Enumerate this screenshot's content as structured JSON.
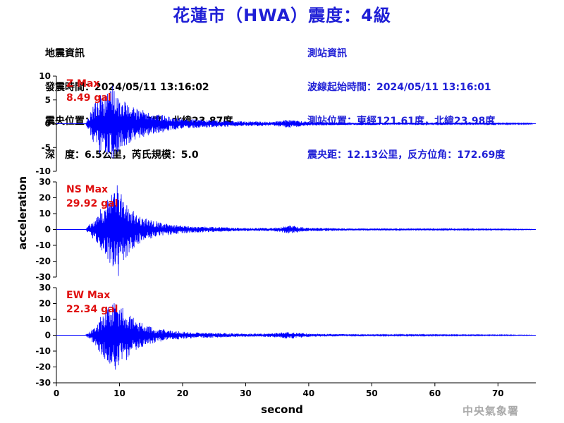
{
  "title": "花蓮市（HWA）震度：4級",
  "quake_info": {
    "heading": "地震資訊",
    "origin_time": "發震時間：2024/05/11 13:16:02",
    "epicenter": "震央位置：東經121.63度，北緯23.87度",
    "depth_magnitude": "深　度：6.5公里，芮氏規模：5.0"
  },
  "station_info": {
    "heading": "測站資訊",
    "wave_start": "波線起始時間：2024/05/11 13:16:01",
    "station_location": "測站位置：東經121.61度，北緯23.98度",
    "distance_azimuth": "震央距：12.13公里，反方位角：172.69度"
  },
  "agency": "中央氣象署",
  "colors": {
    "title": "#1f1fd6",
    "trace": "#0000ff",
    "max_label": "#e01010",
    "axis": "#000000"
  },
  "chart_data": {
    "type": "line",
    "xlabel": "second",
    "ylabel": "acceleration",
    "xlim": [
      0,
      76
    ],
    "x_ticks": [
      0,
      10,
      20,
      30,
      40,
      50,
      60,
      70
    ],
    "grid": false,
    "panels": [
      {
        "name": "Z Max",
        "max_label": "Z Max",
        "max_value": "8.49 gal",
        "ylim": [
          -10,
          10
        ],
        "y_ticks": [
          -10,
          -5,
          0,
          5,
          10
        ],
        "trace": [
          [
            0,
            0
          ],
          [
            4.6,
            0
          ],
          [
            5,
            1.2
          ],
          [
            5.4,
            -2.5
          ],
          [
            5.8,
            3.8
          ],
          [
            6.2,
            -4.6
          ],
          [
            6.6,
            5
          ],
          [
            7,
            -6.8
          ],
          [
            7.4,
            5.5
          ],
          [
            7.8,
            -6
          ],
          [
            8.2,
            6.5
          ],
          [
            8.6,
            -7
          ],
          [
            9,
            8.49
          ],
          [
            9.4,
            -6.5
          ],
          [
            9.8,
            6
          ],
          [
            10.2,
            -5.6
          ],
          [
            10.6,
            5
          ],
          [
            11,
            -4.8
          ],
          [
            11.4,
            4.2
          ],
          [
            11.8,
            -3.9
          ],
          [
            12.2,
            3.6
          ],
          [
            12.8,
            -3.2
          ],
          [
            13.5,
            3
          ],
          [
            14.2,
            -2.6
          ],
          [
            15,
            2.3
          ],
          [
            16,
            -2
          ],
          [
            17,
            1.8
          ],
          [
            18,
            -1.5
          ],
          [
            19,
            1.3
          ],
          [
            20,
            -1.1
          ],
          [
            22,
            0.9
          ],
          [
            24,
            -0.8
          ],
          [
            26,
            0.7
          ],
          [
            28,
            -0.6
          ],
          [
            30,
            0.5
          ],
          [
            32,
            -0.5
          ],
          [
            34,
            0.4
          ],
          [
            35.5,
            -0.6
          ],
          [
            36.5,
            0.9
          ],
          [
            37.5,
            -0.8
          ],
          [
            38.5,
            0.6
          ],
          [
            40,
            -0.4
          ],
          [
            45,
            0.3
          ],
          [
            50,
            -0.25
          ],
          [
            55,
            0.2
          ],
          [
            60,
            -0.2
          ],
          [
            65,
            0.15
          ],
          [
            70,
            -0.15
          ],
          [
            75.5,
            0.1
          ]
        ]
      },
      {
        "name": "NS Max",
        "max_label": "NS Max",
        "max_value": "29.92 gal",
        "ylim": [
          -30,
          30
        ],
        "y_ticks": [
          -30,
          -20,
          -10,
          0,
          10,
          20,
          30
        ],
        "trace": [
          [
            0,
            0
          ],
          [
            4.6,
            0
          ],
          [
            5,
            2
          ],
          [
            5.4,
            -4
          ],
          [
            5.8,
            6
          ],
          [
            6.2,
            -8
          ],
          [
            6.6,
            10
          ],
          [
            7,
            -14
          ],
          [
            7.4,
            16
          ],
          [
            7.8,
            -18
          ],
          [
            8.2,
            20
          ],
          [
            8.6,
            -22
          ],
          [
            9,
            24
          ],
          [
            9.4,
            -26
          ],
          [
            9.8,
            29.92
          ],
          [
            10.2,
            -24
          ],
          [
            10.6,
            20
          ],
          [
            11,
            -18
          ],
          [
            11.4,
            16
          ],
          [
            11.8,
            -14
          ],
          [
            12.2,
            12
          ],
          [
            12.8,
            -10
          ],
          [
            13.5,
            8
          ],
          [
            14.2,
            -7
          ],
          [
            15,
            6
          ],
          [
            16,
            -5
          ],
          [
            17,
            4
          ],
          [
            18,
            -3.5
          ],
          [
            19,
            3
          ],
          [
            20,
            -2.5
          ],
          [
            22,
            2
          ],
          [
            24,
            -1.8
          ],
          [
            26,
            1.5
          ],
          [
            28,
            -1.2
          ],
          [
            30,
            1
          ],
          [
            32,
            -1
          ],
          [
            34,
            1.1
          ],
          [
            35.5,
            -1.5
          ],
          [
            36.5,
            2.5
          ],
          [
            37.5,
            -2.4
          ],
          [
            38.5,
            1.8
          ],
          [
            40,
            -1.2
          ],
          [
            45,
            0.8
          ],
          [
            50,
            -0.6
          ],
          [
            55,
            0.5
          ],
          [
            60,
            -0.4
          ],
          [
            65,
            0.35
          ],
          [
            70,
            -0.3
          ],
          [
            75.5,
            0.2
          ]
        ]
      },
      {
        "name": "EW Max",
        "max_label": "EW Max",
        "max_value": "22.34 gal",
        "ylim": [
          -30,
          30
        ],
        "y_ticks": [
          -30,
          -20,
          -10,
          0,
          10,
          20,
          30
        ],
        "trace": [
          [
            0,
            0
          ],
          [
            4.6,
            0
          ],
          [
            5,
            1.5
          ],
          [
            5.4,
            -3
          ],
          [
            5.8,
            5
          ],
          [
            6.2,
            -7
          ],
          [
            6.6,
            9
          ],
          [
            7,
            -12
          ],
          [
            7.4,
            14
          ],
          [
            7.8,
            -16
          ],
          [
            8.2,
            18
          ],
          [
            8.6,
            -20
          ],
          [
            9,
            21
          ],
          [
            9.4,
            -22.34
          ],
          [
            9.8,
            20
          ],
          [
            10.2,
            -19
          ],
          [
            10.6,
            18
          ],
          [
            11,
            -17
          ],
          [
            11.4,
            15
          ],
          [
            11.8,
            -13
          ],
          [
            12.2,
            11
          ],
          [
            12.8,
            -9
          ],
          [
            13.5,
            8
          ],
          [
            14.2,
            -6.5
          ],
          [
            15,
            5.5
          ],
          [
            16,
            -4.5
          ],
          [
            17,
            3.8
          ],
          [
            18,
            -3.2
          ],
          [
            19,
            2.8
          ],
          [
            20,
            -2.3
          ],
          [
            22,
            1.9
          ],
          [
            24,
            -1.6
          ],
          [
            26,
            1.4
          ],
          [
            28,
            -1.2
          ],
          [
            30,
            1
          ],
          [
            32,
            -1
          ],
          [
            34,
            1.2
          ],
          [
            35.5,
            -1.6
          ],
          [
            36.5,
            2.2
          ],
          [
            37.5,
            -2
          ],
          [
            38.5,
            1.6
          ],
          [
            40,
            -1
          ],
          [
            45,
            0.7
          ],
          [
            50,
            -0.5
          ],
          [
            55,
            0.4
          ],
          [
            60,
            -0.35
          ],
          [
            65,
            0.3
          ],
          [
            70,
            -0.25
          ],
          [
            75.5,
            0.15
          ]
        ]
      }
    ]
  }
}
